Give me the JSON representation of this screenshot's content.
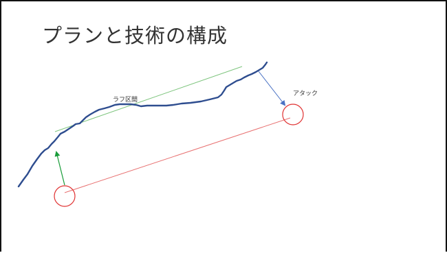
{
  "slide": {
    "title": "プランと技術の構成"
  },
  "labels": {
    "rough_section": "ラフ区間",
    "attack": "アタック"
  },
  "colors": {
    "route_line": "#2e4d8f",
    "trend_line": "#7cc47c",
    "attack_arrow": "#4a72c4",
    "start_arrow": "#1a9c3a",
    "circles": "#e03030",
    "connector": "#e87070",
    "frame": "#111111"
  }
}
